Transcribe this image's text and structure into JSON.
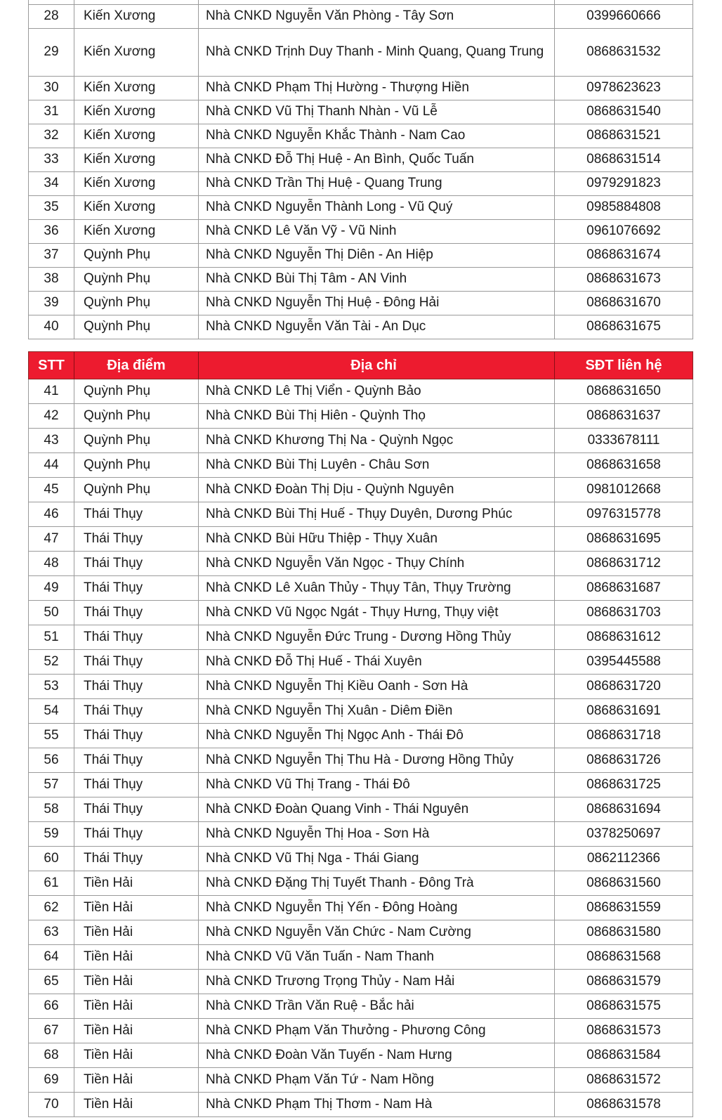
{
  "colors": {
    "header_bg": "#ED1B2F",
    "header_text": "#FFFFFF",
    "row_bg": "#FFFFFF",
    "border": "#9A9A9A",
    "text": "#1B1B1B"
  },
  "header": {
    "stt": "STT",
    "district": "Địa điểm",
    "address": "Địa chỉ",
    "phone": "SĐT liên hệ"
  },
  "tables": [
    {
      "rows": [
        {
          "stt": "28",
          "district": "Kiến Xương",
          "address": "Nhà CNKD Nguyễn Văn Phòng - Tây Sơn",
          "phone": "0399660666"
        },
        {
          "stt": "29",
          "district": "Kiến Xương",
          "address": "Nhà CNKD Trịnh Duy Thanh - Minh Quang, Quang Trung",
          "phone": "0868631532",
          "tall": true
        },
        {
          "stt": "30",
          "district": "Kiến Xương",
          "address": "Nhà CNKD Phạm Thị Hường - Thượng Hiền",
          "phone": "0978623623"
        },
        {
          "stt": "31",
          "district": "Kiến Xương",
          "address": "Nhà CNKD Vũ Thị Thanh Nhàn - Vũ Lễ",
          "phone": "0868631540"
        },
        {
          "stt": "32",
          "district": "Kiến Xương",
          "address": "Nhà CNKD Nguyễn Khắc Thành - Nam Cao",
          "phone": "0868631521"
        },
        {
          "stt": "33",
          "district": "Kiến Xương",
          "address": "Nhà CNKD Đỗ Thị Huệ - An Bình, Quốc Tuấn",
          "phone": "0868631514"
        },
        {
          "stt": "34",
          "district": "Kiến Xương",
          "address": "Nhà CNKD Trần Thị Huệ - Quang Trung",
          "phone": "0979291823"
        },
        {
          "stt": "35",
          "district": "Kiến Xương",
          "address": "Nhà CNKD Nguyễn Thành Long - Vũ Quý",
          "phone": "0985884808"
        },
        {
          "stt": "36",
          "district": "Kiến Xương",
          "address": "Nhà CNKD Lê Văn Vỹ - Vũ Ninh",
          "phone": "0961076692"
        },
        {
          "stt": "37",
          "district": "Quỳnh Phụ",
          "address": "Nhà CNKD Nguyễn Thị Diên - An Hiệp",
          "phone": "0868631674"
        },
        {
          "stt": "38",
          "district": "Quỳnh Phụ",
          "address": "Nhà CNKD Bùi Thị Tâm - AN Vinh",
          "phone": "0868631673"
        },
        {
          "stt": "39",
          "district": "Quỳnh Phụ",
          "address": "Nhà CNKD Nguyễn Thị Huệ - Đông Hải",
          "phone": "0868631670"
        },
        {
          "stt": "40",
          "district": "Quỳnh Phụ",
          "address": "Nhà CNKD Nguyễn Văn Tài - An Dục",
          "phone": "0868631675"
        }
      ]
    },
    {
      "rows": [
        {
          "stt": "41",
          "district": "Quỳnh Phụ",
          "address": "Nhà CNKD Lê Thị Viển - Quỳnh Bảo",
          "phone": "0868631650"
        },
        {
          "stt": "42",
          "district": "Quỳnh Phụ",
          "address": "Nhà CNKD Bùi Thị Hiên - Quỳnh Thọ",
          "phone": "0868631637"
        },
        {
          "stt": "43",
          "district": "Quỳnh Phụ",
          "address": "Nhà CNKD Khương Thị Na - Quỳnh Ngọc",
          "phone": "0333678111"
        },
        {
          "stt": "44",
          "district": "Quỳnh Phụ",
          "address": "Nhà CNKD Bùi Thị Luyên - Châu Sơn",
          "phone": "0868631658"
        },
        {
          "stt": "45",
          "district": "Quỳnh Phụ",
          "address": "Nhà CNKD Đoàn Thị Dịu - Quỳnh Nguyên",
          "phone": "0981012668"
        },
        {
          "stt": "46",
          "district": "Thái Thụy",
          "address": "Nhà CNKD Bùi Thị Huế - Thụy Duyên, Dương Phúc",
          "phone": "0976315778"
        },
        {
          "stt": "47",
          "district": "Thái Thụy",
          "address": "Nhà CNKD Bùi Hữu Thiệp - Thụy Xuân",
          "phone": "0868631695"
        },
        {
          "stt": "48",
          "district": "Thái Thụy",
          "address": "Nhà CNKD Nguyễn Văn Ngọc - Thụy Chính",
          "phone": "0868631712"
        },
        {
          "stt": "49",
          "district": "Thái Thụy",
          "address": "Nhà CNKD Lê Xuân Thủy - Thụy Tân, Thụy Trường",
          "phone": "0868631687"
        },
        {
          "stt": "50",
          "district": "Thái Thụy",
          "address": "Nhà CNKD Vũ Ngọc Ngát - Thụy Hưng, Thụy việt",
          "phone": "0868631703"
        },
        {
          "stt": "51",
          "district": "Thái Thụy",
          "address": "Nhà CNKD Nguyễn Đức Trung - Dương Hồng Thủy",
          "phone": "0868631612"
        },
        {
          "stt": "52",
          "district": "Thái Thụy",
          "address": "Nhà CNKD Đỗ Thị Huế - Thái Xuyên",
          "phone": "0395445588"
        },
        {
          "stt": "53",
          "district": "Thái Thụy",
          "address": "Nhà CNKD Nguyễn Thị Kiều Oanh - Sơn Hà",
          "phone": "0868631720"
        },
        {
          "stt": "54",
          "district": "Thái Thụy",
          "address": "Nhà CNKD Nguyễn Thị Xuân - Diêm Điền",
          "phone": "0868631691"
        },
        {
          "stt": "55",
          "district": "Thái Thụy",
          "address": "Nhà CNKD Nguyễn Thị Ngọc Anh - Thái Đô",
          "phone": "0868631718"
        },
        {
          "stt": "56",
          "district": "Thái Thụy",
          "address": "Nhà CNKD Nguyễn Thị Thu Hà - Dương Hồng Thủy",
          "phone": "0868631726"
        },
        {
          "stt": "57",
          "district": "Thái Thụy",
          "address": "Nhà CNKD Vũ Thị Trang - Thái Đô",
          "phone": "0868631725"
        },
        {
          "stt": "58",
          "district": "Thái Thụy",
          "address": "Nhà CNKD Đoàn Quang Vinh - Thái Nguyên",
          "phone": "0868631694"
        },
        {
          "stt": "59",
          "district": "Thái Thụy",
          "address": "Nhà CNKD Nguyễn Thị Hoa - Sơn Hà",
          "phone": "0378250697"
        },
        {
          "stt": "60",
          "district": "Thái Thụy",
          "address": "Nhà CNKD Vũ Thị Nga - Thái Giang",
          "phone": "0862112366"
        },
        {
          "stt": "61",
          "district": "Tiền Hải",
          "address": "Nhà CNKD Đặng Thị Tuyết Thanh - Đông Trà",
          "phone": "0868631560"
        },
        {
          "stt": "62",
          "district": "Tiền Hải",
          "address": "Nhà CNKD Nguyễn Thị Yến - Đông Hoàng",
          "phone": "0868631559"
        },
        {
          "stt": "63",
          "district": "Tiền Hải",
          "address": "Nhà CNKD Nguyễn Văn Chức - Nam Cường",
          "phone": "0868631580"
        },
        {
          "stt": "64",
          "district": "Tiền Hải",
          "address": "Nhà CNKD Vũ Văn Tuấn - Nam Thanh",
          "phone": "0868631568"
        },
        {
          "stt": "65",
          "district": "Tiền Hải",
          "address": "Nhà CNKD Trương Trọng Thủy - Nam Hải",
          "phone": "0868631579"
        },
        {
          "stt": "66",
          "district": "Tiền Hải",
          "address": "Nhà CNKD Trần Văn Ruệ - Bắc hải",
          "phone": "0868631575"
        },
        {
          "stt": "67",
          "district": "Tiền Hải",
          "address": "Nhà CNKD Phạm Văn Thưởng - Phương Công",
          "phone": "0868631573"
        },
        {
          "stt": "68",
          "district": "Tiền Hải",
          "address": "Nhà CNKD Đoàn Văn Tuyến - Nam Hưng",
          "phone": "0868631584"
        },
        {
          "stt": "69",
          "district": "Tiền Hải",
          "address": "Nhà CNKD Phạm Văn Tứ - Nam Hồng",
          "phone": "0868631572"
        },
        {
          "stt": "70",
          "district": "Tiền Hải",
          "address": "Nhà CNKD Phạm Thị Thơm - Nam Hà",
          "phone": "0868631578"
        }
      ]
    }
  ]
}
